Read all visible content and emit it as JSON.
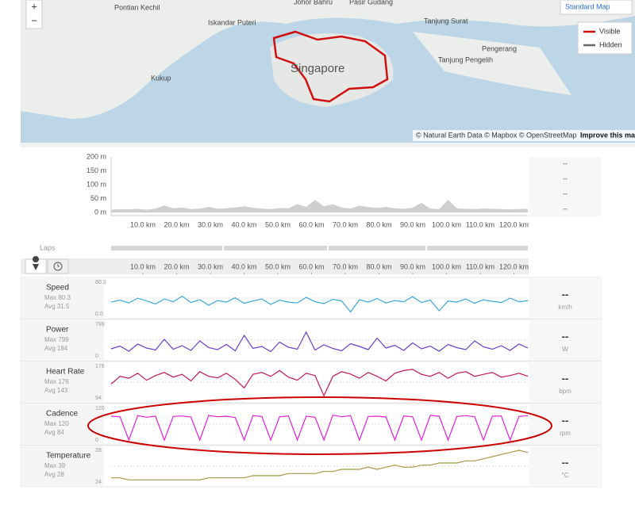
{
  "map": {
    "zoom_in": "+",
    "zoom_out": "−",
    "style": "Standard Map",
    "legend": [
      "Visible",
      "Hidden"
    ],
    "places": [
      "Johor Bahru",
      "Pasir Gudang",
      "Pontian Kechil",
      "Iskandar Puteri",
      "Tanjung Surat",
      "Pengerang",
      "Tanjung Pengelih",
      "Kukup",
      "Singapore"
    ],
    "attribution": "© Natural Earth Data © Mapbox © OpenStreetMap",
    "attribution_link": "Improve this ma"
  },
  "elevation": {
    "yticks": [
      "200 m",
      "150 m",
      "100 m",
      "50 m",
      "0 m"
    ],
    "xticks": [
      "10.0 km",
      "20.0 km",
      "30.0 km",
      "40.0 km",
      "50.0 km",
      "60.0 km",
      "70.0 km",
      "80.0 km",
      "90.0 km",
      "100.0 km",
      "110.0 km",
      "120.0 km"
    ],
    "profile": [
      10,
      12,
      11,
      13,
      10,
      14,
      25,
      15,
      18,
      12,
      14,
      20,
      13,
      15,
      18,
      22,
      17,
      14,
      12,
      16,
      15,
      30,
      20,
      45,
      22,
      30,
      18,
      14,
      25,
      19,
      16,
      20,
      15,
      13,
      17,
      35,
      14,
      12,
      45,
      15,
      13,
      12,
      14,
      13,
      12,
      11,
      12,
      13
    ],
    "summary": [
      "--",
      "--",
      "--",
      "--"
    ]
  },
  "laps": "Laps",
  "streams": [
    {
      "name": "Speed",
      "max": "Max 80.3",
      "avg": "Avg 31.5",
      "top": "80.3",
      "bottom": "0.0",
      "unit": "km/h",
      "current": "--",
      "color": "#3ba8d8",
      "samples": [
        30,
        35,
        28,
        40,
        33,
        25,
        38,
        31,
        45,
        29,
        36,
        22,
        34,
        30,
        41,
        27,
        33,
        38,
        24,
        35,
        30,
        28,
        42,
        31,
        26,
        37,
        33,
        5,
        36,
        30,
        39,
        28,
        34,
        31,
        44,
        29,
        35,
        8,
        33,
        30,
        38,
        27,
        36,
        32,
        29,
        40,
        31,
        34
      ]
    },
    {
      "name": "Power",
      "max": "Max 799",
      "avg": "Avg 184",
      "top": "799",
      "bottom": "0",
      "unit": "W",
      "current": "--",
      "color": "#6a3fc7",
      "samples": [
        180,
        250,
        120,
        300,
        200,
        150,
        420,
        170,
        260,
        140,
        380,
        210,
        160,
        290,
        130,
        520,
        190,
        240,
        110,
        350,
        220,
        170,
        600,
        150,
        280,
        190,
        130,
        310,
        240,
        160,
        450,
        200,
        270,
        140,
        330,
        180,
        250,
        120,
        290,
        210,
        160,
        380,
        230,
        170,
        260,
        140,
        300,
        200
      ]
    },
    {
      "name": "Heart Rate",
      "max": "Max 176",
      "avg": "Avg 143",
      "top": "176",
      "bottom": "94",
      "unit": "bpm",
      "current": "--",
      "color": "#c4184f",
      "samples": [
        130,
        150,
        145,
        158,
        140,
        152,
        160,
        148,
        155,
        138,
        162,
        150,
        146,
        158,
        142,
        120,
        155,
        160,
        150,
        165,
        148,
        140,
        158,
        152,
        100,
        150,
        162,
        156,
        145,
        160,
        150,
        138,
        158,
        165,
        168,
        155,
        150,
        160,
        145,
        158,
        162,
        150,
        155,
        160,
        148,
        152,
        158,
        150
      ]
    },
    {
      "name": "Cadence",
      "max": "Max 120",
      "avg": "Avg 84",
      "top": "120",
      "bottom": "0",
      "unit": "rpm",
      "current": "--",
      "color": "#e020d8",
      "samples": [
        90,
        88,
        0,
        92,
        86,
        90,
        0,
        89,
        91,
        87,
        0,
        93,
        88,
        90,
        85,
        0,
        92,
        89,
        0,
        88,
        91,
        0,
        90,
        86,
        0,
        94,
        88,
        92,
        0,
        89,
        90,
        87,
        0,
        91,
        88,
        0,
        93,
        90,
        0,
        89,
        92,
        88,
        0,
        90,
        91,
        0,
        89,
        92
      ]
    },
    {
      "name": "Temperature",
      "max": "Max 39",
      "avg": "Avg 28",
      "top": "39",
      "bottom": "24",
      "unit": "°C",
      "current": "--",
      "color": "#a89a48",
      "samples": [
        26,
        26,
        25,
        25,
        25,
        25,
        25,
        25,
        25,
        25,
        25,
        26,
        26,
        26,
        26,
        26,
        27,
        27,
        27,
        27,
        28,
        28,
        28,
        28,
        29,
        29,
        30,
        30,
        30,
        31,
        30,
        31,
        32,
        31,
        31,
        32,
        32,
        33,
        33,
        33,
        34,
        34,
        35,
        36,
        37,
        38,
        39,
        38
      ]
    }
  ]
}
